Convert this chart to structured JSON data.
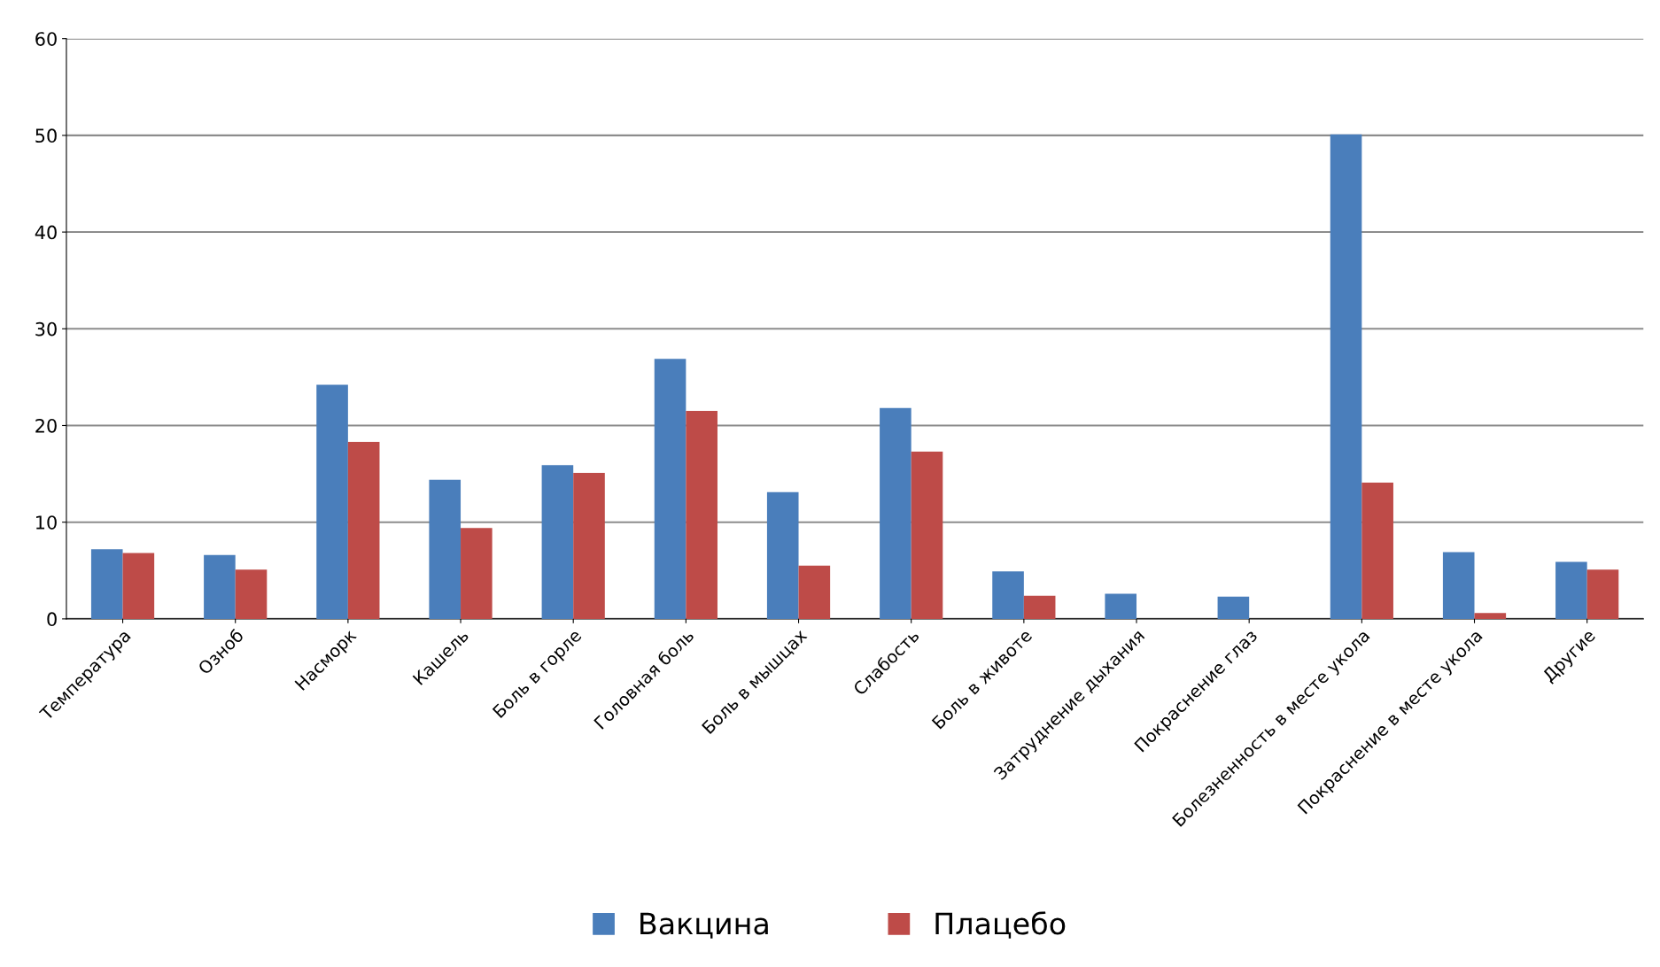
{
  "chart_data": {
    "type": "bar",
    "categories": [
      "Температура",
      "Озноб",
      "Насморк",
      "Кашель",
      "Боль в горле",
      "Головная боль",
      "Боль в мышцах",
      "Слабость",
      "Боль в животе",
      "Затруднение дыхания",
      "Покраснение глаз",
      "Болезненность в месте укола",
      "Покраснение в месте укола",
      "Другие"
    ],
    "series": [
      {
        "name": "Вакцина",
        "color": "#4a7ebb",
        "values": [
          7.2,
          6.6,
          24.2,
          14.4,
          15.9,
          26.9,
          13.1,
          21.8,
          4.9,
          2.6,
          2.3,
          50.1,
          6.9,
          5.9
        ]
      },
      {
        "name": "Плацебо",
        "color": "#be4b48",
        "values": [
          6.8,
          5.1,
          18.3,
          9.4,
          15.1,
          21.5,
          5.5,
          17.3,
          2.4,
          0,
          0,
          14.1,
          0.6,
          5.1
        ]
      }
    ],
    "ylim": [
      0,
      60
    ],
    "yticks": [
      0,
      10,
      20,
      30,
      40,
      50,
      60
    ],
    "grid": "y",
    "legend": "bottom"
  }
}
